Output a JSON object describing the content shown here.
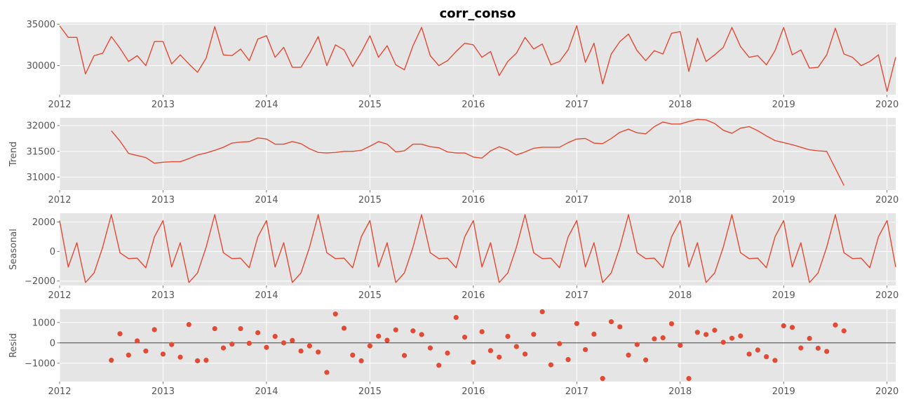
{
  "chart_data": {
    "type": "line",
    "title": "corr_conso",
    "x_start": "2012-01",
    "x_end": "2020-02",
    "x_tick_labels": [
      "2012",
      "2013",
      "2014",
      "2015",
      "2016",
      "2017",
      "2018",
      "2019",
      "2020"
    ],
    "line_color": "#E24A33",
    "panel_background": "#E5E5E5",
    "grid": true,
    "panels": [
      {
        "name": "observed",
        "ylabel": "",
        "kind": "line",
        "ylim": [
          26500,
          35200
        ],
        "yticks": [
          30000,
          35000
        ],
        "ytick_labels": [
          "30000",
          "35000"
        ],
        "start": "2012-01",
        "values": [
          34800,
          33400,
          33400,
          29000,
          31200,
          31500,
          33500,
          32100,
          30500,
          31200,
          30000,
          32900,
          32900,
          30200,
          31300,
          30200,
          29200,
          30900,
          34700,
          31300,
          31200,
          32000,
          30600,
          33200,
          33600,
          31000,
          32200,
          29800,
          29800,
          31500,
          33500,
          30000,
          32500,
          31900,
          29900,
          31600,
          33600,
          31000,
          32400,
          30100,
          29500,
          32400,
          34600,
          31200,
          30000,
          30600,
          31700,
          32700,
          32500,
          31000,
          31700,
          28800,
          30500,
          31500,
          33400,
          32000,
          32600,
          30100,
          30500,
          31900,
          34800,
          30400,
          32700,
          27800,
          31400,
          32900,
          33800,
          31800,
          30600,
          31800,
          31400,
          33900,
          34100,
          29300,
          33300,
          30500,
          31300,
          32200,
          34600,
          32300,
          31000,
          31200,
          30100,
          31800,
          34600,
          31300,
          31900,
          29700,
          29800,
          31300,
          34500,
          31400,
          31000,
          30000,
          30500,
          31300,
          26900,
          31000
        ]
      },
      {
        "name": "trend",
        "ylabel": "Trend",
        "kind": "line",
        "ylim": [
          30750,
          32150
        ],
        "yticks": [
          31000,
          31500,
          32000
        ],
        "ytick_labels": [
          "31000",
          "31500",
          "32000"
        ],
        "start": "2012-07",
        "values": [
          31900,
          31700,
          31460,
          31420,
          31380,
          31270,
          31290,
          31300,
          31300,
          31360,
          31430,
          31470,
          31520,
          31580,
          31660,
          31680,
          31690,
          31760,
          31740,
          31640,
          31640,
          31690,
          31650,
          31550,
          31480,
          31470,
          31480,
          31500,
          31500,
          31520,
          31600,
          31690,
          31640,
          31490,
          31510,
          31640,
          31640,
          31590,
          31570,
          31490,
          31470,
          31470,
          31390,
          31370,
          31510,
          31590,
          31530,
          31430,
          31490,
          31560,
          31580,
          31580,
          31580,
          31670,
          31740,
          31750,
          31660,
          31650,
          31750,
          31870,
          31930,
          31860,
          31840,
          31980,
          32070,
          32030,
          32030,
          32080,
          32120,
          32110,
          32040,
          31910,
          31850,
          31950,
          31980,
          31900,
          31800,
          31710,
          31670,
          31630,
          31580,
          31530,
          31510,
          31500,
          31170,
          30840
        ]
      },
      {
        "name": "seasonal",
        "ylabel": "Seasonal",
        "kind": "line",
        "ylim": [
          -2300,
          2600
        ],
        "yticks": [
          -2000,
          0,
          2000
        ],
        "ytick_labels": [
          "−2000",
          "0",
          "2000"
        ],
        "start": "2012-01",
        "pattern": [
          2100,
          -1050,
          600,
          -2100,
          -1450,
          300,
          2500,
          -80,
          -480,
          -450,
          -1100,
          1000
        ],
        "periods": 98
      },
      {
        "name": "resid",
        "ylabel": "Resid",
        "kind": "scatter",
        "ylim": [
          -1900,
          1650
        ],
        "yticks": [
          -1000,
          0,
          1000
        ],
        "ytick_labels": [
          "−1000",
          "0",
          "1000"
        ],
        "zero_line": true,
        "start": "2012-07",
        "values": [
          -850,
          450,
          -600,
          100,
          -400,
          650,
          -550,
          -80,
          -700,
          900,
          -880,
          -850,
          700,
          -250,
          -60,
          700,
          -20,
          500,
          -220,
          320,
          0,
          120,
          -400,
          -150,
          -450,
          -1450,
          1420,
          720,
          -600,
          -880,
          -150,
          330,
          130,
          640,
          -620,
          590,
          410,
          -250,
          -1100,
          -500,
          1250,
          280,
          -950,
          550,
          -380,
          -700,
          320,
          -180,
          -550,
          420,
          1530,
          -1080,
          -40,
          -820,
          950,
          -330,
          430,
          -1750,
          1040,
          790,
          -600,
          -80,
          -840,
          200,
          250,
          940,
          -120,
          -1750,
          520,
          410,
          620,
          30,
          230,
          340,
          -550,
          -350,
          -680,
          -860,
          840,
          760,
          -250,
          220,
          -260,
          -420,
          880,
          590
        ]
      }
    ]
  }
}
